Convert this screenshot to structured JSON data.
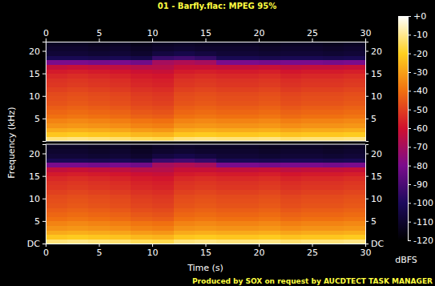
{
  "chart_data": {
    "type": "heatmap",
    "title": "01 - Barfly.flac: MPEG 95%",
    "x_label": "Time (s)",
    "y_label": "Frequency (kHz)",
    "annotations": [
      "Produced by SOX on request by AUCDTECT TASK MANAGER"
    ],
    "xlim": [
      0,
      30
    ],
    "xticks": [
      0,
      5,
      10,
      15,
      20,
      25,
      30
    ],
    "ylim": [
      0,
      22.05
    ],
    "time_bins": [
      0,
      2,
      4,
      6,
      8,
      10,
      12,
      14,
      16,
      18,
      20,
      22,
      24,
      26,
      28,
      30
    ],
    "freq_bins": [
      0,
      1,
      2,
      3,
      4,
      5,
      6,
      7,
      8,
      9,
      10,
      11,
      12,
      13,
      14,
      15,
      16,
      17,
      18,
      19,
      20,
      21,
      22.05
    ],
    "channels": [
      {
        "yticks": [
          5,
          10,
          15,
          20
        ],
        "values": [
          [
            -12,
            -11,
            -12,
            -13,
            -15,
            -16,
            -12,
            -11,
            -12,
            -12,
            -11,
            -13,
            -12,
            -12,
            -11
          ],
          [
            -22,
            -21,
            -22,
            -23,
            -25,
            -26,
            -22,
            -21,
            -22,
            -22,
            -21,
            -23,
            -22,
            -22,
            -21
          ],
          [
            -28,
            -27,
            -28,
            -29,
            -31,
            -32,
            -28,
            -27,
            -28,
            -28,
            -27,
            -29,
            -28,
            -28,
            -27
          ],
          [
            -33,
            -32,
            -33,
            -34,
            -36,
            -37,
            -33,
            -32,
            -33,
            -33,
            -32,
            -34,
            -33,
            -33,
            -32
          ],
          [
            -36,
            -35,
            -36,
            -37,
            -39,
            -40,
            -36,
            -35,
            -36,
            -36,
            -35,
            -37,
            -36,
            -36,
            -35
          ],
          [
            -40,
            -39,
            -40,
            -41,
            -43,
            -44,
            -40,
            -39,
            -40,
            -40,
            -39,
            -41,
            -40,
            -40,
            -39
          ],
          [
            -42,
            -41,
            -42,
            -43,
            -45,
            -46,
            -42,
            -41,
            -42,
            -42,
            -41,
            -43,
            -42,
            -42,
            -41
          ],
          [
            -44,
            -43,
            -44,
            -45,
            -47,
            -48,
            -44,
            -43,
            -44,
            -44,
            -43,
            -45,
            -44,
            -44,
            -43
          ],
          [
            -46,
            -45,
            -46,
            -47,
            -49,
            -50,
            -46,
            -45,
            -46,
            -46,
            -45,
            -47,
            -46,
            -46,
            -45
          ],
          [
            -47,
            -46,
            -47,
            -48,
            -50,
            -51,
            -47,
            -46,
            -47,
            -47,
            -46,
            -48,
            -47,
            -47,
            -46
          ],
          [
            -48,
            -47,
            -48,
            -49,
            -51,
            -52,
            -48,
            -47,
            -48,
            -48,
            -47,
            -49,
            -48,
            -48,
            -47
          ],
          [
            -50,
            -49,
            -50,
            -51,
            -53,
            -54,
            -50,
            -49,
            -50,
            -50,
            -49,
            -51,
            -50,
            -50,
            -49
          ],
          [
            -52,
            -51,
            -52,
            -53,
            -55,
            -56,
            -52,
            -51,
            -52,
            -52,
            -51,
            -53,
            -52,
            -52,
            -51
          ],
          [
            -53,
            -52,
            -53,
            -54,
            -56,
            -57,
            -53,
            -52,
            -53,
            -53,
            -52,
            -54,
            -53,
            -53,
            -52
          ],
          [
            -55,
            -54,
            -55,
            -56,
            -58,
            -59,
            -55,
            -54,
            -55,
            -55,
            -54,
            -56,
            -55,
            -55,
            -54
          ],
          [
            -58,
            -57,
            -58,
            -59,
            -61,
            -62,
            -58,
            -57,
            -58,
            -58,
            -57,
            -59,
            -58,
            -58,
            -57
          ],
          [
            -63,
            -62,
            -63,
            -64,
            -66,
            -66,
            -62,
            -62,
            -63,
            -63,
            -62,
            -64,
            -63,
            -63,
            -62
          ],
          [
            -80,
            -80,
            -81,
            -80,
            -82,
            -70,
            -68,
            -70,
            -80,
            -80,
            -81,
            -80,
            -80,
            -81,
            -80
          ],
          [
            -102,
            -102,
            -103,
            -102,
            -104,
            -94,
            -92,
            -95,
            -102,
            -102,
            -103,
            -102,
            -102,
            -103,
            -102
          ],
          [
            -108,
            -108,
            -109,
            -108,
            -110,
            -106,
            -104,
            -106,
            -108,
            -108,
            -109,
            -108,
            -108,
            -109,
            -108
          ],
          [
            -110,
            -110,
            -111,
            -110,
            -112,
            -110,
            -109,
            -110,
            -110,
            -110,
            -111,
            -110,
            -110,
            -111,
            -110
          ],
          [
            -112,
            -112,
            -113,
            -112,
            -114,
            -112,
            -111,
            -112,
            -112,
            -112,
            -113,
            -112,
            -112,
            -113,
            -112
          ]
        ]
      },
      {
        "yticks": [
          {
            "value": 0,
            "label": "DC"
          },
          5,
          10,
          15,
          20
        ],
        "values": [
          [
            -12,
            -11,
            -12,
            -13,
            -15,
            -16,
            -12,
            -11,
            -12,
            -12,
            -11,
            -13,
            -12,
            -12,
            -11
          ],
          [
            -22,
            -21,
            -22,
            -23,
            -25,
            -26,
            -22,
            -21,
            -22,
            -22,
            -21,
            -23,
            -22,
            -22,
            -21
          ],
          [
            -28,
            -27,
            -28,
            -29,
            -31,
            -32,
            -28,
            -27,
            -28,
            -28,
            -27,
            -29,
            -28,
            -28,
            -27
          ],
          [
            -33,
            -32,
            -33,
            -34,
            -36,
            -37,
            -33,
            -32,
            -33,
            -33,
            -32,
            -34,
            -33,
            -33,
            -32
          ],
          [
            -36,
            -35,
            -36,
            -37,
            -39,
            -40,
            -36,
            -35,
            -36,
            -36,
            -35,
            -37,
            -36,
            -36,
            -35
          ],
          [
            -40,
            -39,
            -40,
            -41,
            -43,
            -44,
            -40,
            -39,
            -40,
            -40,
            -39,
            -41,
            -40,
            -40,
            -39
          ],
          [
            -42,
            -41,
            -42,
            -43,
            -45,
            -46,
            -42,
            -41,
            -42,
            -42,
            -41,
            -43,
            -42,
            -42,
            -41
          ],
          [
            -44,
            -43,
            -44,
            -45,
            -47,
            -48,
            -44,
            -43,
            -44,
            -44,
            -43,
            -45,
            -44,
            -44,
            -43
          ],
          [
            -46,
            -45,
            -46,
            -47,
            -49,
            -50,
            -46,
            -45,
            -46,
            -46,
            -45,
            -47,
            -46,
            -46,
            -45
          ],
          [
            -47,
            -46,
            -47,
            -48,
            -50,
            -51,
            -47,
            -46,
            -47,
            -47,
            -46,
            -48,
            -47,
            -47,
            -46
          ],
          [
            -48,
            -47,
            -48,
            -49,
            -51,
            -52,
            -48,
            -47,
            -48,
            -48,
            -47,
            -49,
            -48,
            -48,
            -47
          ],
          [
            -50,
            -49,
            -50,
            -51,
            -53,
            -54,
            -50,
            -49,
            -50,
            -50,
            -49,
            -51,
            -50,
            -50,
            -49
          ],
          [
            -52,
            -51,
            -52,
            -53,
            -55,
            -56,
            -52,
            -51,
            -52,
            -52,
            -51,
            -53,
            -52,
            -52,
            -51
          ],
          [
            -53,
            -52,
            -53,
            -54,
            -56,
            -57,
            -53,
            -52,
            -53,
            -53,
            -52,
            -54,
            -53,
            -53,
            -52
          ],
          [
            -55,
            -54,
            -55,
            -56,
            -58,
            -59,
            -55,
            -54,
            -55,
            -55,
            -54,
            -56,
            -55,
            -55,
            -54
          ],
          [
            -58,
            -57,
            -58,
            -59,
            -61,
            -62,
            -58,
            -57,
            -58,
            -58,
            -57,
            -59,
            -58,
            -58,
            -57
          ],
          [
            -63,
            -62,
            -63,
            -64,
            -66,
            -66,
            -62,
            -62,
            -63,
            -63,
            -62,
            -64,
            -63,
            -63,
            -62
          ],
          [
            -80,
            -80,
            -81,
            -80,
            -82,
            -70,
            -68,
            -70,
            -80,
            -80,
            -81,
            -80,
            -80,
            -81,
            -80
          ],
          [
            -102,
            -102,
            -103,
            -102,
            -104,
            -94,
            -92,
            -95,
            -102,
            -102,
            -103,
            -102,
            -102,
            -103,
            -102
          ],
          [
            -108,
            -108,
            -109,
            -108,
            -110,
            -106,
            -104,
            -106,
            -108,
            -108,
            -109,
            -108,
            -108,
            -109,
            -108
          ],
          [
            -110,
            -110,
            -111,
            -110,
            -112,
            -110,
            -109,
            -110,
            -110,
            -110,
            -111,
            -110,
            -110,
            -111,
            -110
          ],
          [
            -112,
            -112,
            -113,
            -112,
            -114,
            -112,
            -111,
            -112,
            -112,
            -112,
            -113,
            -112,
            -112,
            -113,
            -112
          ]
        ]
      }
    ],
    "colorbar": {
      "range": [
        -120,
        0
      ],
      "ticks": [
        {
          "value": 0,
          "label": "+0"
        },
        -10,
        -20,
        -30,
        -40,
        -50,
        -60,
        -70,
        -80,
        -90,
        -100,
        -110,
        -120
      ],
      "label": "dBFS"
    }
  }
}
